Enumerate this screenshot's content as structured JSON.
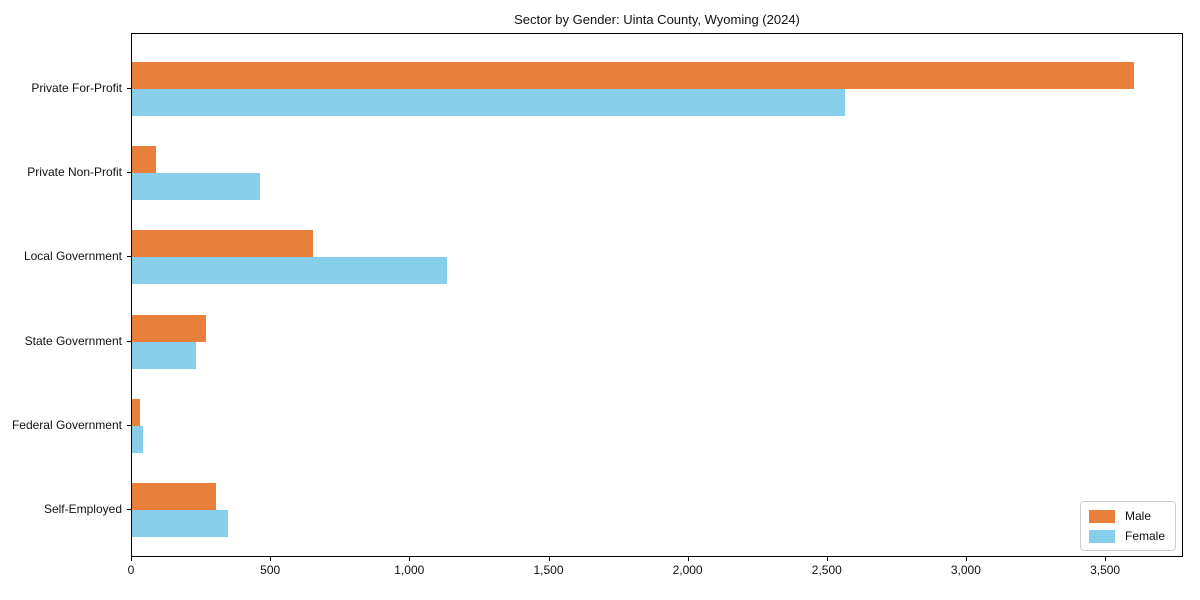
{
  "chart_data": {
    "type": "bar",
    "orientation": "horizontal",
    "title": "Sector by Gender: Uinta County, Wyoming (2024)",
    "categories": [
      "Private For-Profit",
      "Private Non-Profit",
      "Local Government",
      "State Government",
      "Federal Government",
      "Self-Employed"
    ],
    "series": [
      {
        "name": "Male",
        "color": "#e8803c",
        "values": [
          3600,
          85,
          650,
          265,
          30,
          300
        ]
      },
      {
        "name": "Female",
        "color": "#87ceeb",
        "values": [
          2560,
          460,
          1130,
          230,
          40,
          345
        ]
      }
    ],
    "xlabel": "",
    "ylabel": "",
    "xlim": [
      0,
      3780
    ],
    "xticks": [
      0,
      500,
      1000,
      1500,
      2000,
      2500,
      3000,
      3500
    ],
    "xtick_labels": [
      "0",
      "500",
      "1,000",
      "1,500",
      "2,000",
      "2,500",
      "3,000",
      "3,500"
    ],
    "grid": false,
    "legend": {
      "position": "lower right"
    },
    "colors": {
      "axis": "#000000",
      "background": "#ffffff"
    }
  }
}
